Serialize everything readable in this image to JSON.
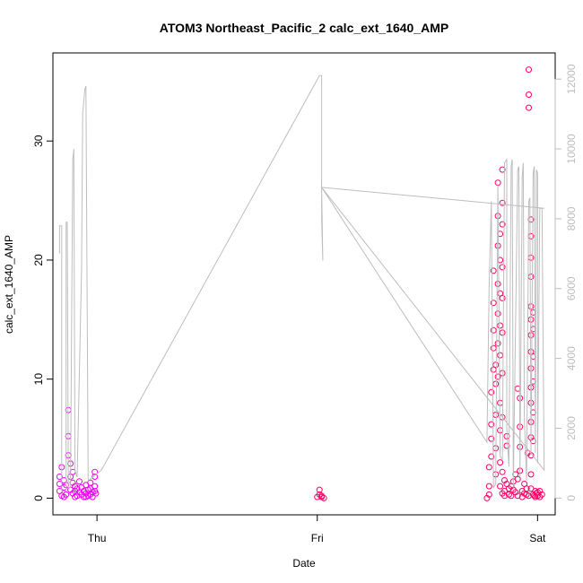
{
  "chart_data": {
    "type": "scatter",
    "title": "ATOM3 Northeast_Pacific_2 calc_ext_1640_AMP",
    "xlabel": "Date",
    "ylabel": "calc_ext_1640_AMP",
    "x_axis": {
      "ticks": [
        {
          "pos": 1.0,
          "label": "Thu"
        },
        {
          "pos": 2.0,
          "label": "Fri"
        },
        {
          "pos": 3.0,
          "label": "Sat"
        }
      ],
      "xlim": [
        0.8,
        3.08
      ]
    },
    "y_axis_left": {
      "ticks": [
        0,
        10,
        20,
        30
      ],
      "ylim": [
        -1.4,
        37.4
      ]
    },
    "y_axis_right": {
      "ticks": [
        0,
        2000,
        4000,
        6000,
        8000,
        10000,
        12000
      ],
      "ylim": [
        -480,
        12750
      ],
      "color": "#bdbdbd"
    },
    "grid": false,
    "point_colors": {
      "early": "#ee00ee",
      "late": "#ff0066"
    },
    "line_color": "#bdbdbd",
    "series": [
      {
        "role": "points",
        "points": [
          [
            0.83,
            1.2
          ],
          [
            0.83,
            1.8
          ],
          [
            0.83,
            0.6
          ],
          [
            0.84,
            2.6
          ],
          [
            0.84,
            0.2
          ],
          [
            0.85,
            1.5
          ],
          [
            0.85,
            0.9
          ],
          [
            0.86,
            0.3
          ],
          [
            0.86,
            1.1
          ],
          [
            0.87,
            7.4
          ],
          [
            0.87,
            5.2
          ],
          [
            0.87,
            3.6
          ],
          [
            0.88,
            2.9
          ],
          [
            0.88,
            1.8
          ],
          [
            0.88,
            0.7
          ],
          [
            0.89,
            0.4
          ],
          [
            0.89,
            1.3
          ],
          [
            0.89,
            2.2
          ],
          [
            0.9,
            0.6
          ],
          [
            0.9,
            1.0
          ],
          [
            0.91,
            0.2
          ],
          [
            0.91,
            0.8
          ],
          [
            0.92,
            0.5
          ],
          [
            0.92,
            1.4
          ],
          [
            0.93,
            0.3
          ],
          [
            0.93,
            0.9
          ],
          [
            0.94,
            0.1
          ],
          [
            0.94,
            0.6
          ],
          [
            0.95,
            0.4
          ],
          [
            0.95,
            1.1
          ],
          [
            0.96,
            0.2
          ],
          [
            0.96,
            0.7
          ],
          [
            0.97,
            0.3
          ],
          [
            0.97,
            1.3
          ],
          [
            0.98,
            0.5
          ],
          [
            0.98,
            0.1
          ],
          [
            0.99,
            2.2
          ],
          [
            0.99,
            1.8
          ],
          [
            0.99,
            1.0
          ],
          [
            0.99,
            0.6
          ],
          [
            0.995,
            0.4
          ],
          [
            0.85,
            0.1
          ],
          [
            0.9,
            0.1
          ],
          [
            0.95,
            0.1
          ],
          [
            0.97,
            0.8
          ],
          [
            2.01,
            0.7
          ],
          [
            2.01,
            0.3
          ],
          [
            2.02,
            0.1
          ],
          [
            2.02,
            0.2
          ],
          [
            2.03,
            0.0
          ],
          [
            2.0,
            0.1
          ],
          [
            2.77,
            0.0
          ],
          [
            2.78,
            0.3
          ],
          [
            2.78,
            1.0
          ],
          [
            2.78,
            2.6
          ],
          [
            2.79,
            3.5
          ],
          [
            2.79,
            5.0
          ],
          [
            2.79,
            6.2
          ],
          [
            2.79,
            8.9
          ],
          [
            2.8,
            10.8
          ],
          [
            2.8,
            12.6
          ],
          [
            2.8,
            14.1
          ],
          [
            2.8,
            16.4
          ],
          [
            2.8,
            19.1
          ],
          [
            2.81,
            11.2
          ],
          [
            2.81,
            9.6
          ],
          [
            2.81,
            7.0
          ],
          [
            2.81,
            4.2
          ],
          [
            2.81,
            2.0
          ],
          [
            2.82,
            26.5
          ],
          [
            2.82,
            23.7
          ],
          [
            2.82,
            21.2
          ],
          [
            2.82,
            18.0
          ],
          [
            2.82,
            15.5
          ],
          [
            2.82,
            13.0
          ],
          [
            2.82,
            10.2
          ],
          [
            2.83,
            22.2
          ],
          [
            2.83,
            20.0
          ],
          [
            2.83,
            17.2
          ],
          [
            2.83,
            14.5
          ],
          [
            2.83,
            12.0
          ],
          [
            2.83,
            8.0
          ],
          [
            2.83,
            5.7
          ],
          [
            2.83,
            3.0
          ],
          [
            2.83,
            1.0
          ],
          [
            2.84,
            27.6
          ],
          [
            2.84,
            24.8
          ],
          [
            2.84,
            23.0
          ],
          [
            2.84,
            19.4
          ],
          [
            2.84,
            16.8
          ],
          [
            2.84,
            13.9
          ],
          [
            2.84,
            10.5
          ],
          [
            2.84,
            6.8
          ],
          [
            2.84,
            2.2
          ],
          [
            2.84,
            0.4
          ],
          [
            2.85,
            1.5
          ],
          [
            2.85,
            0.6
          ],
          [
            2.85,
            0.2
          ],
          [
            2.86,
            5.2
          ],
          [
            2.86,
            4.4
          ],
          [
            2.86,
            1.2
          ],
          [
            2.87,
            0.8
          ],
          [
            2.87,
            0.3
          ],
          [
            2.88,
            1.0
          ],
          [
            2.88,
            0.2
          ],
          [
            2.89,
            0.7
          ],
          [
            2.89,
            1.4
          ],
          [
            2.9,
            0.5
          ],
          [
            2.9,
            2.0
          ],
          [
            2.91,
            1.6
          ],
          [
            2.91,
            0.2
          ],
          [
            2.91,
            9.2
          ],
          [
            2.92,
            8.4
          ],
          [
            2.92,
            6.0
          ],
          [
            2.92,
            4.3
          ],
          [
            2.92,
            2.3
          ],
          [
            2.93,
            0.6
          ],
          [
            2.93,
            0.1
          ],
          [
            2.94,
            0.4
          ],
          [
            2.94,
            1.2
          ],
          [
            2.95,
            0.3
          ],
          [
            2.95,
            0.8
          ],
          [
            2.955,
            3.8
          ],
          [
            2.96,
            36.0
          ],
          [
            2.96,
            33.9
          ],
          [
            2.96,
            32.8
          ],
          [
            2.96,
            0.2
          ],
          [
            2.97,
            23.4
          ],
          [
            2.97,
            22.0
          ],
          [
            2.97,
            20.2
          ],
          [
            2.97,
            18.6
          ],
          [
            2.97,
            16.1
          ],
          [
            2.97,
            15.0
          ],
          [
            2.97,
            13.7
          ],
          [
            2.97,
            12.3
          ],
          [
            2.97,
            10.9
          ],
          [
            2.97,
            9.3
          ],
          [
            2.97,
            8.0
          ],
          [
            2.97,
            6.4
          ],
          [
            2.97,
            5.1
          ],
          [
            2.97,
            3.6
          ],
          [
            2.97,
            2.0
          ],
          [
            2.97,
            0.8
          ],
          [
            2.98,
            15.6
          ],
          [
            2.98,
            14.2
          ],
          [
            2.98,
            11.9
          ],
          [
            2.98,
            9.8
          ],
          [
            2.98,
            7.2
          ],
          [
            2.98,
            4.8
          ],
          [
            2.98,
            0.3
          ],
          [
            2.99,
            0.6
          ],
          [
            2.99,
            0.1
          ],
          [
            3.0,
            0.2
          ],
          [
            3.0,
            0.5
          ],
          [
            3.01,
            0.6
          ],
          [
            3.01,
            0.1
          ],
          [
            3.02,
            0.3
          ],
          [
            2.995,
            0.4
          ],
          [
            2.985,
            0.2
          ]
        ]
      },
      {
        "role": "line",
        "axis": "right",
        "points": [
          [
            0.83,
            7000
          ],
          [
            0.83,
            7800
          ],
          [
            0.84,
            7800
          ],
          [
            0.84,
            200
          ],
          [
            0.86,
            200
          ],
          [
            0.86,
            7900
          ],
          [
            0.865,
            7900
          ],
          [
            0.87,
            300
          ],
          [
            0.88,
            300
          ],
          [
            0.89,
            9700
          ],
          [
            0.895,
            10000
          ],
          [
            0.9,
            800
          ],
          [
            0.91,
            600
          ],
          [
            0.93,
            6500
          ],
          [
            0.935,
            11000
          ],
          [
            0.945,
            11700
          ],
          [
            0.95,
            11800
          ],
          [
            0.96,
            500
          ],
          [
            0.96,
            500
          ],
          [
            1.02,
            800
          ],
          [
            2.01,
            12100
          ],
          [
            2.02,
            12100
          ],
          [
            2.02,
            8700
          ],
          [
            2.02,
            8000
          ],
          [
            2.025,
            6800
          ],
          [
            2.02,
            8900
          ],
          [
            2.77,
            1600
          ],
          [
            2.78,
            6000
          ],
          [
            2.79,
            8500
          ],
          [
            2.8,
            300
          ],
          [
            2.81,
            400
          ],
          [
            2.82,
            9000
          ],
          [
            2.83,
            1200
          ],
          [
            2.84,
            1100
          ],
          [
            2.85,
            9600
          ],
          [
            2.86,
            9700
          ],
          [
            2.86,
            2000
          ],
          [
            2.87,
            900
          ],
          [
            2.88,
            9500
          ],
          [
            2.885,
            9700
          ],
          [
            2.89,
            300
          ],
          [
            2.91,
            9400
          ],
          [
            2.915,
            9500
          ],
          [
            2.92,
            600
          ],
          [
            2.93,
            9200
          ],
          [
            2.935,
            9600
          ],
          [
            2.94,
            2300
          ],
          [
            2.95,
            500
          ],
          [
            2.96,
            8500
          ],
          [
            2.965,
            8600
          ],
          [
            2.97,
            1300
          ],
          [
            2.98,
            9300
          ],
          [
            2.985,
            9500
          ],
          [
            2.99,
            1300
          ],
          [
            2.995,
            9400
          ],
          [
            3.0,
            9300
          ],
          [
            3.0,
            1000
          ],
          [
            3.01,
            8300
          ],
          [
            3.02,
            8300
          ],
          [
            3.03,
            800
          ],
          [
            2.02,
            8900
          ],
          [
            3.03,
            8300
          ]
        ]
      }
    ]
  }
}
